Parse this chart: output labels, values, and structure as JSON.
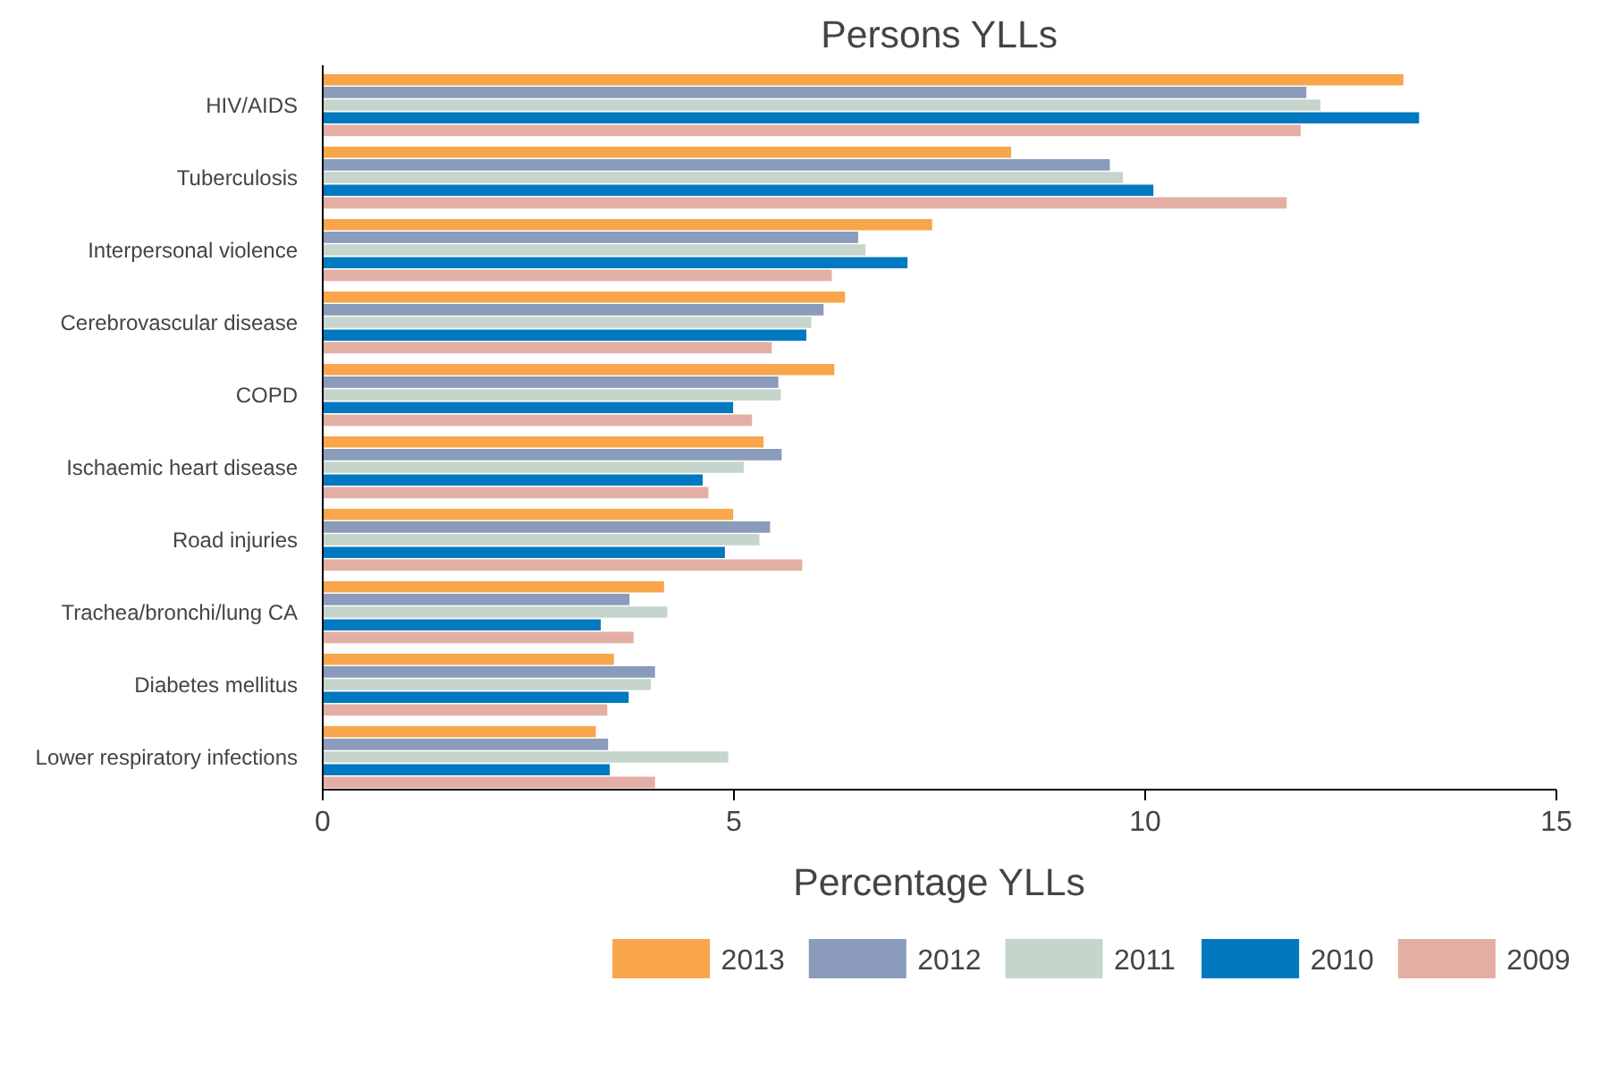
{
  "chart_data": {
    "type": "bar",
    "orientation": "horizontal",
    "title": "Persons YLLs",
    "xlabel": "Percentage YLLs",
    "categories": [
      "HIV/AIDS",
      "Tuberculosis",
      "Interpersonal violence",
      "Cerebrovascular disease",
      "COPD",
      "Ischaemic heart disease",
      "Road injuries",
      "Trachea/bronchi/lung CA",
      "Diabetes mellitus",
      "Lower respiratory infections"
    ],
    "series": [
      {
        "name": "2013",
        "color": "#f9a54b",
        "values": [
          13.14,
          8.37,
          7.41,
          6.35,
          6.22,
          5.36,
          4.99,
          4.15,
          3.54,
          3.32
        ]
      },
      {
        "name": "2012",
        "color": "#8a9bbb",
        "values": [
          11.96,
          9.57,
          6.51,
          6.09,
          5.54,
          5.58,
          5.44,
          3.73,
          4.04,
          3.47
        ]
      },
      {
        "name": "2011",
        "color": "#c5d5cb",
        "values": [
          12.13,
          9.73,
          6.6,
          5.94,
          5.57,
          5.12,
          5.31,
          4.19,
          3.99,
          4.93
        ]
      },
      {
        "name": "2010",
        "color": "#0079c1",
        "values": [
          13.33,
          10.1,
          7.11,
          5.88,
          4.99,
          4.62,
          4.89,
          3.38,
          3.72,
          3.49
        ]
      },
      {
        "name": "2009",
        "color": "#e3afa4",
        "values": [
          11.89,
          11.72,
          6.19,
          5.46,
          5.22,
          4.69,
          5.83,
          3.78,
          3.46,
          4.04
        ]
      }
    ],
    "xlim": [
      0,
      15
    ],
    "xticks": [
      0,
      5,
      10,
      15
    ],
    "grid": false,
    "legend": "bottom"
  }
}
